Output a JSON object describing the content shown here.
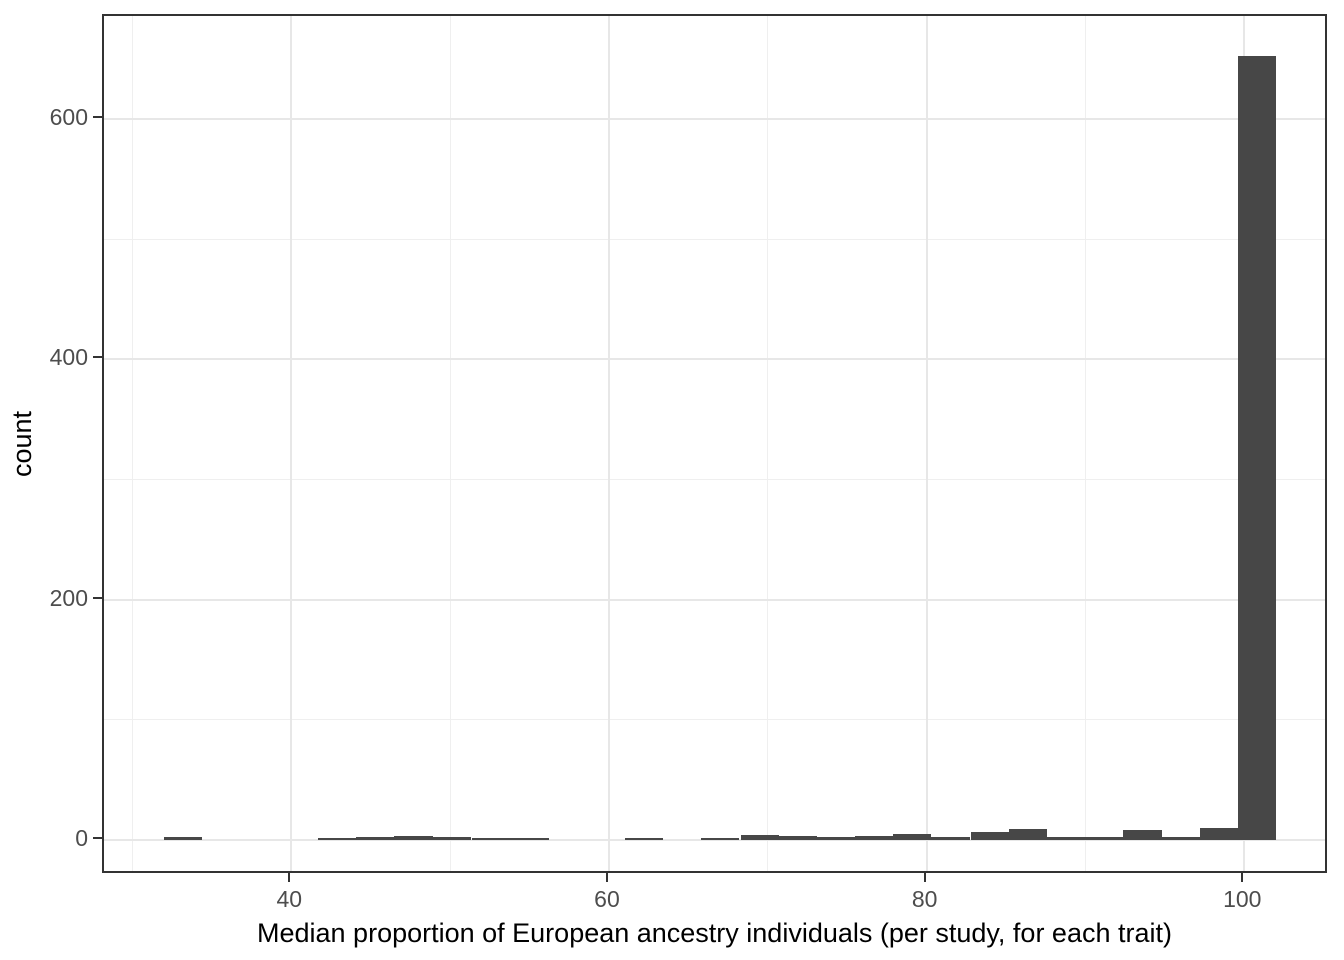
{
  "chart_data": {
    "type": "bar",
    "subtype": "histogram",
    "title": "",
    "xlabel": "Median proportion of European ancestry individuals (per study, for each trait)",
    "ylabel": "count",
    "x_ticks": [
      40,
      60,
      80,
      100
    ],
    "x_minor_gridlines": [
      30,
      50,
      70,
      90
    ],
    "y_ticks": [
      0,
      200,
      400,
      600
    ],
    "y_minor_gridlines": [
      100,
      300,
      500
    ],
    "xlim": [
      28.2,
      105.3
    ],
    "ylim": [
      -29,
      686
    ],
    "grid": "on",
    "legend": "none",
    "binwidth": 2.41,
    "bins": [
      {
        "center": 33.2,
        "count": 2
      },
      {
        "center": 42.9,
        "count": 1
      },
      {
        "center": 45.3,
        "count": 2
      },
      {
        "center": 47.7,
        "count": 3
      },
      {
        "center": 50.1,
        "count": 2
      },
      {
        "center": 52.6,
        "count": 1
      },
      {
        "center": 55.0,
        "count": 1
      },
      {
        "center": 62.2,
        "count": 1
      },
      {
        "center": 67.0,
        "count": 1
      },
      {
        "center": 69.5,
        "count": 4
      },
      {
        "center": 71.9,
        "count": 3
      },
      {
        "center": 74.3,
        "count": 2
      },
      {
        "center": 76.7,
        "count": 3
      },
      {
        "center": 79.1,
        "count": 5
      },
      {
        "center": 81.5,
        "count": 2
      },
      {
        "center": 84.0,
        "count": 6
      },
      {
        "center": 86.4,
        "count": 9
      },
      {
        "center": 88.8,
        "count": 2
      },
      {
        "center": 91.2,
        "count": 2
      },
      {
        "center": 93.6,
        "count": 8
      },
      {
        "center": 96.0,
        "count": 2
      },
      {
        "center": 98.4,
        "count": 10
      },
      {
        "center": 100.8,
        "count": 653
      }
    ],
    "colors": {
      "bar_fill": "#474747",
      "panel_border": "#333333",
      "grid_major": "#e7e7e7",
      "grid_minor": "#efefef",
      "tick_mark": "#333333",
      "tick_label": "#4d4d4d",
      "axis_title": "#000000",
      "background": "#ffffff"
    }
  }
}
